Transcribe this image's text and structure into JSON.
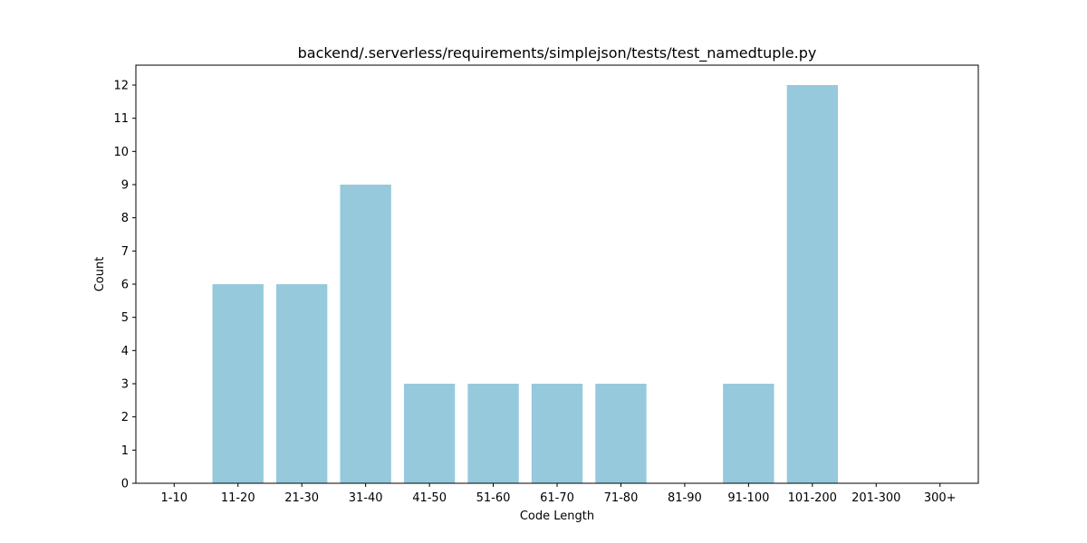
{
  "chart_data": {
    "type": "bar",
    "title": "backend/.serverless/requirements/simplejson/tests/test_namedtuple.py",
    "xlabel": "Code Length",
    "ylabel": "Count",
    "categories": [
      "1-10",
      "11-20",
      "21-30",
      "31-40",
      "41-50",
      "51-60",
      "61-70",
      "71-80",
      "81-90",
      "91-100",
      "101-200",
      "201-300",
      "300+"
    ],
    "values": [
      0,
      6,
      6,
      9,
      3,
      3,
      3,
      3,
      0,
      3,
      12,
      0,
      0
    ],
    "ylim": [
      0,
      12.6
    ],
    "yticks": [
      0,
      1,
      2,
      3,
      4,
      5,
      6,
      7,
      8,
      9,
      10,
      11,
      12
    ],
    "bar_color": "#96c9dc",
    "grid": false,
    "legend": "none"
  }
}
